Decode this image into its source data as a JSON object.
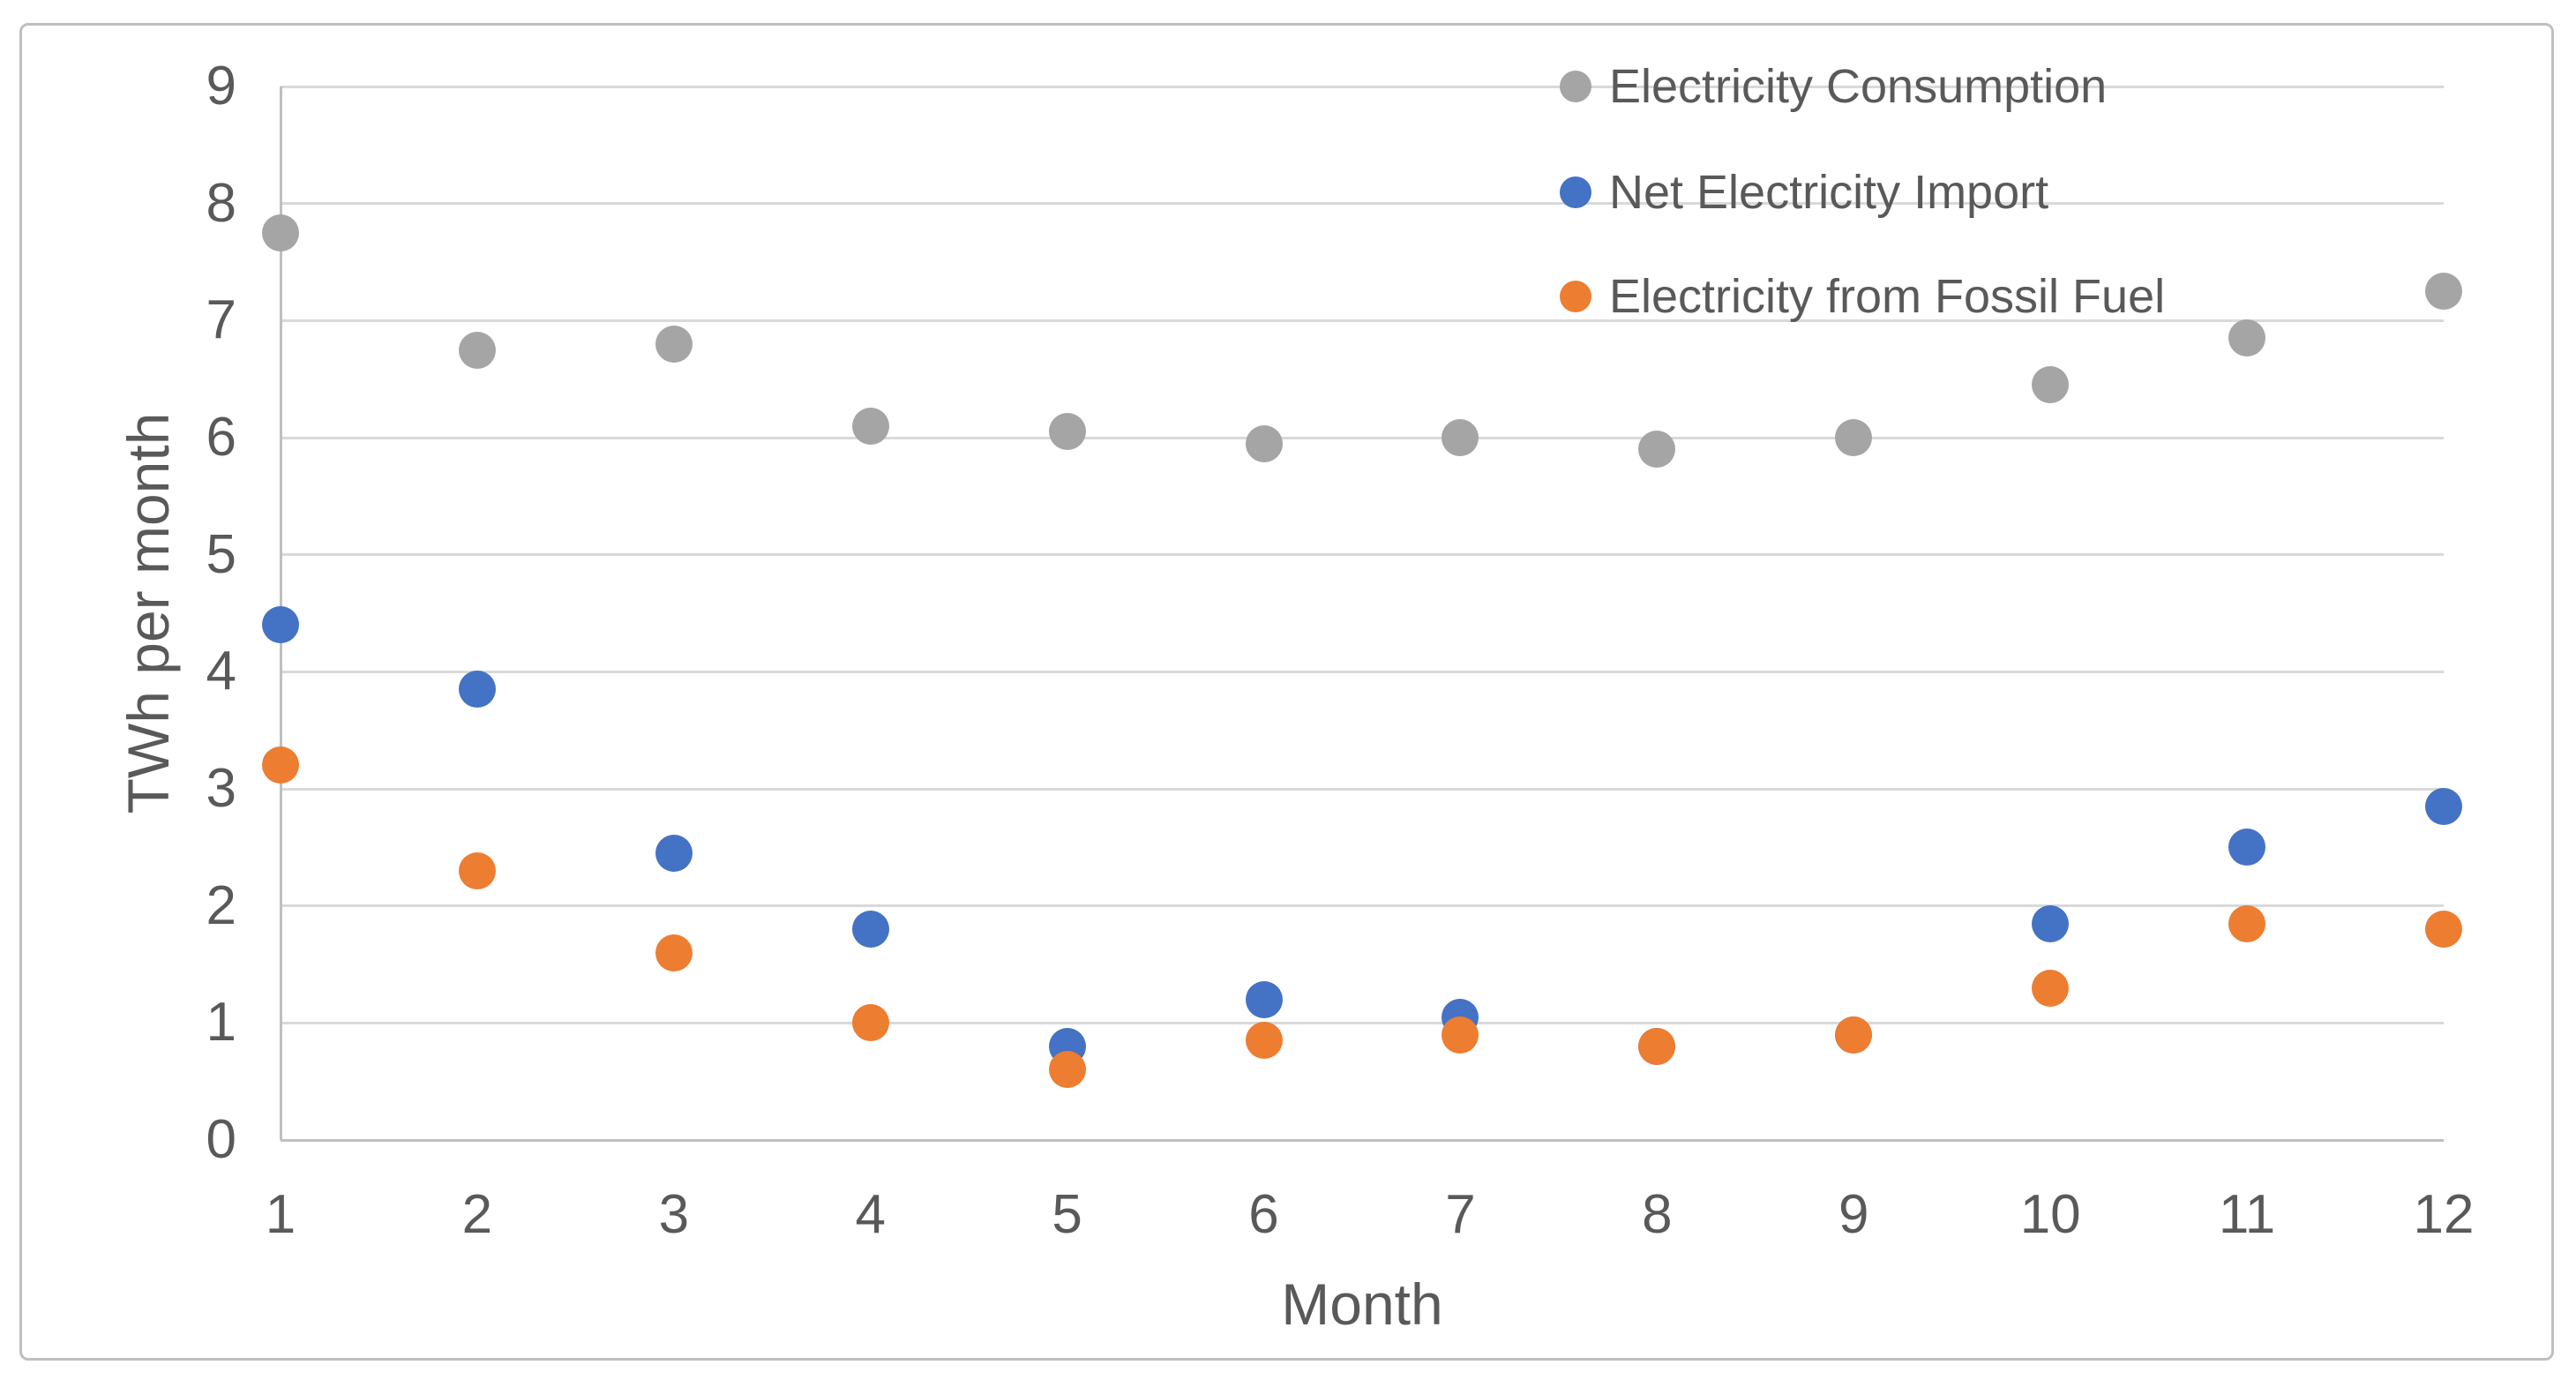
{
  "chart_data": {
    "type": "scatter",
    "title": "",
    "xlabel": "Month",
    "ylabel": "TWh per month",
    "x": [
      1,
      2,
      3,
      4,
      5,
      6,
      7,
      8,
      9,
      10,
      11,
      12
    ],
    "series": [
      {
        "name": "Electricity Consumption",
        "color": "#A5A5A5",
        "values": [
          7.75,
          6.75,
          6.8,
          6.1,
          6.05,
          5.95,
          6.0,
          5.9,
          6.0,
          6.45,
          6.85,
          7.25
        ]
      },
      {
        "name": "Net Electricity Import",
        "color": "#4472C4",
        "values": [
          4.4,
          3.85,
          2.45,
          1.8,
          0.8,
          1.2,
          1.05,
          0.8,
          0.9,
          1.85,
          2.5,
          2.85
        ]
      },
      {
        "name": "Electricity from Fossil Fuel",
        "color": "#ED7D31",
        "values": [
          3.2,
          2.3,
          1.6,
          1.0,
          0.6,
          0.85,
          0.9,
          0.8,
          0.9,
          1.3,
          1.85,
          1.8
        ]
      }
    ],
    "xlim": [
      1,
      12
    ],
    "ylim": [
      0,
      9
    ],
    "xticks": [
      1,
      2,
      3,
      4,
      5,
      6,
      7,
      8,
      9,
      10,
      11,
      12
    ],
    "yticks": [
      0,
      1,
      2,
      3,
      4,
      5,
      6,
      7,
      8,
      9
    ],
    "grid": true,
    "legend_position": "top-right"
  },
  "colors": {
    "gridline": "#D9D9D9",
    "axis": "#BFBFBF",
    "frame_border": "#BFBFBF",
    "text": "#595959",
    "background": "#FFFFFF"
  }
}
